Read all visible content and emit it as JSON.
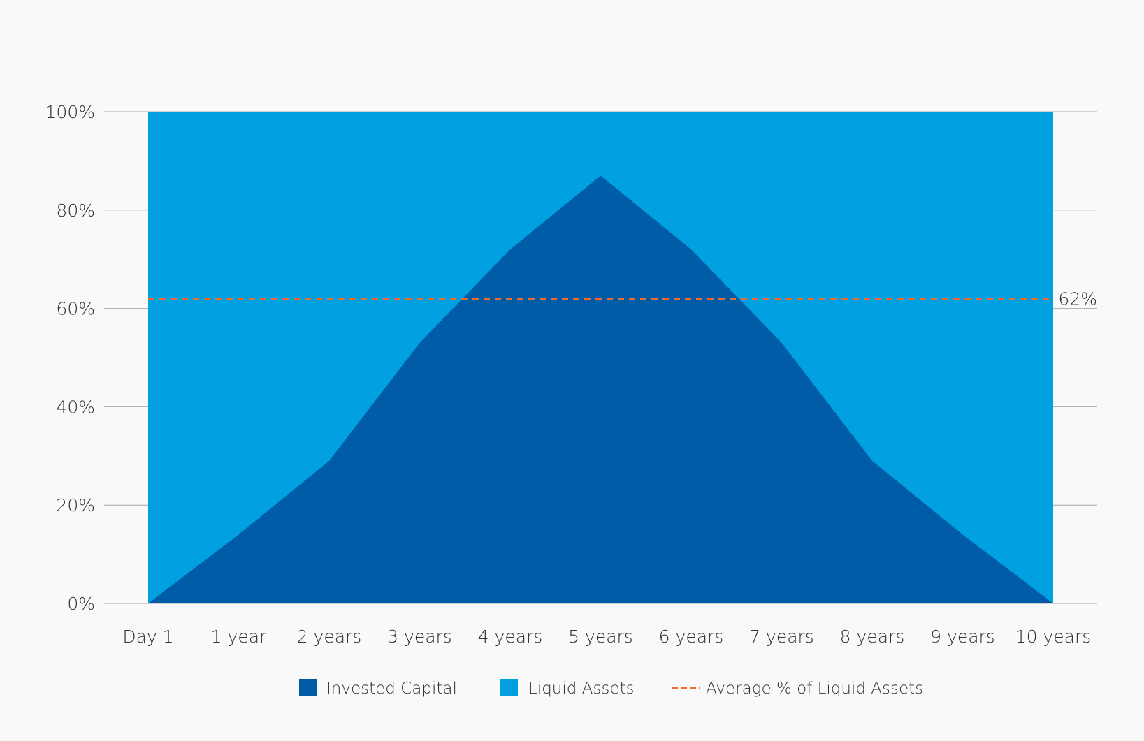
{
  "chart_data": {
    "type": "area",
    "title": "",
    "xlabel": "",
    "ylabel": "",
    "categories": [
      "Day 1",
      "1 year",
      "2 years",
      "3 years",
      "4 years",
      "5 years",
      "6 years",
      "7 years",
      "8 years",
      "9 years",
      "10 years"
    ],
    "series": [
      {
        "name": "Invested Capital",
        "values": [
          0,
          14,
          29,
          53,
          72,
          87,
          72,
          53,
          29,
          14,
          0
        ],
        "color": "#005ca6"
      },
      {
        "name": "Liquid Assets",
        "values": [
          100,
          86,
          71,
          47,
          28,
          13,
          28,
          47,
          71,
          86,
          100
        ],
        "color": "#00a0e1"
      }
    ],
    "stacked": true,
    "average_line": {
      "name": "Average % of Liquid Assets",
      "value": 62,
      "label": "62%",
      "color": "#f26a2a"
    },
    "ylim": [
      0,
      100
    ],
    "yticks": [
      "0%",
      "20%",
      "40%",
      "60%",
      "80%",
      "100%"
    ],
    "ytick_values": [
      0,
      20,
      40,
      60,
      80,
      100
    ],
    "grid": true,
    "legend_position": "bottom"
  }
}
